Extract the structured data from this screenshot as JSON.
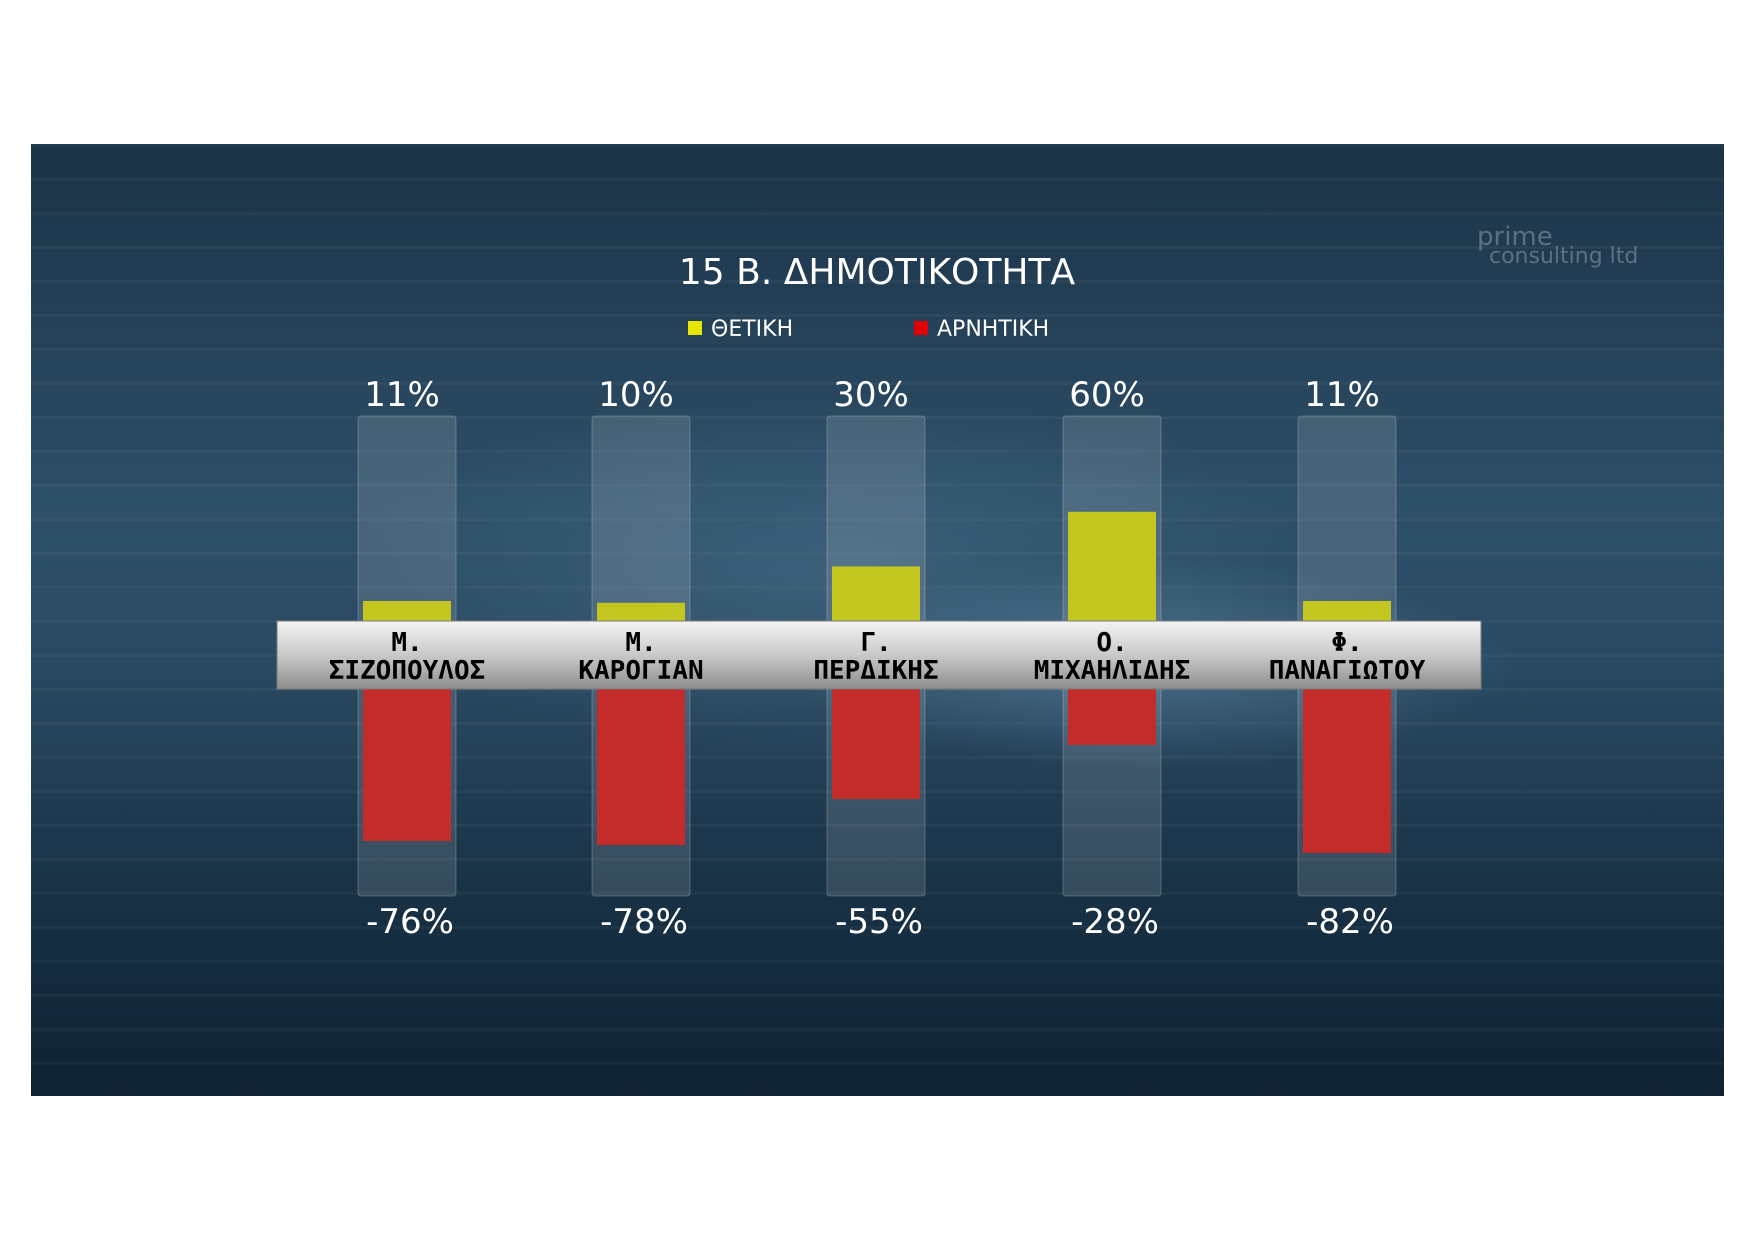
{
  "chart_data": {
    "type": "bar",
    "title": "15 Β. ΔΗΜΟΤΙΚΟΤΗΤΑ",
    "legend_placement": "top-center",
    "categories": [
      [
        "Μ.",
        "ΣΙΖΟΠΟΥΛΟΣ"
      ],
      [
        "Μ.",
        "ΚΑΡΟΓΙΑΝ"
      ],
      [
        "Γ.",
        "ΠΕΡΔΙΚΗΣ"
      ],
      [
        "Ο.",
        "ΜΙΧΑΗΛΙΔΗΣ"
      ],
      [
        "Φ.",
        "ΠΑΝΑΓΙΩΤΟΥ"
      ]
    ],
    "series": [
      {
        "name": "ΘΕΤΙΚΗ",
        "color": "#c3c61f",
        "values": [
          11,
          10,
          30,
          60,
          11
        ],
        "labels": [
          "11%",
          "10%",
          "30%",
          "60%",
          "11%"
        ]
      },
      {
        "name": "ΑΡΝΗΤΙΚΗ",
        "color": "#c42b2b",
        "values": [
          -76,
          -78,
          -55,
          -28,
          -82
        ],
        "labels": [
          "-76%",
          "-78%",
          "-55%",
          "-28%",
          "-82%"
        ]
      }
    ],
    "ylim": [
      -100,
      100
    ],
    "grid": false
  },
  "watermark": {
    "line1": "prime",
    "line2": "consulting ltd"
  }
}
